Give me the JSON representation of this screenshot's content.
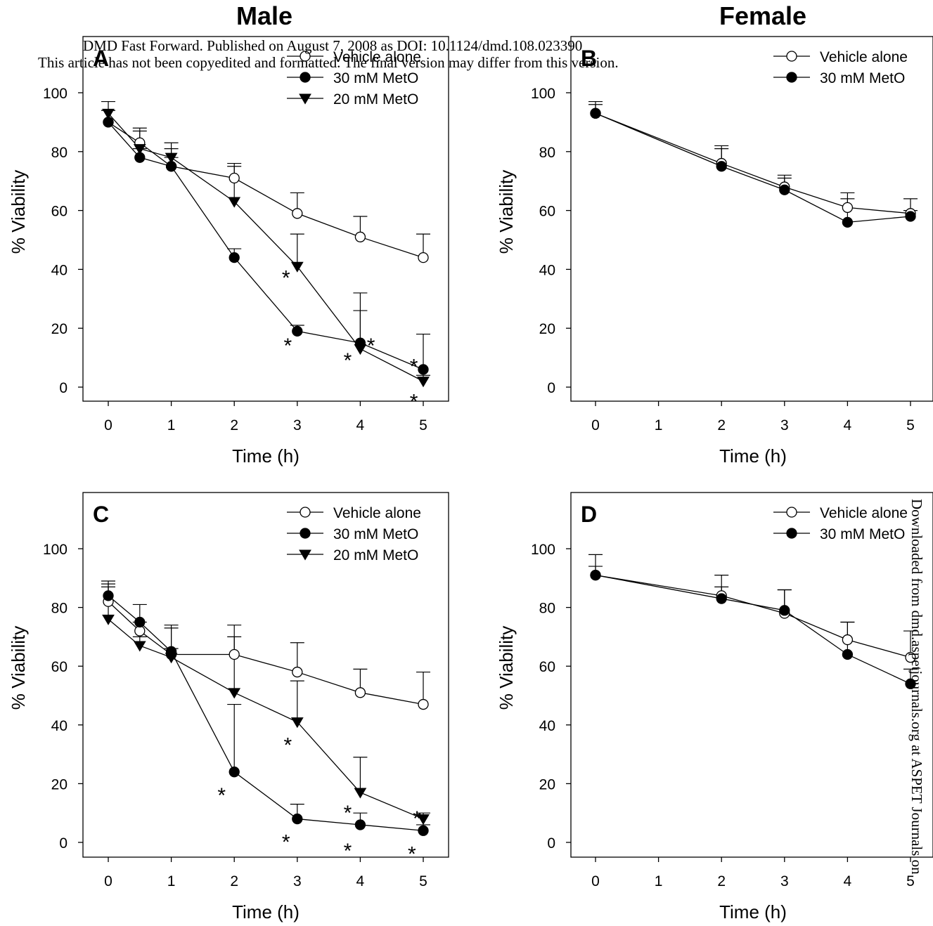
{
  "headings": {
    "male": "Male",
    "female": "Female"
  },
  "watermark": {
    "line1": "DMD Fast Forward. Published on August 7, 2008 as DOI: 10.1124/dmd.108.023390",
    "line2": "This article has not been copyedited and formatted. The final version may differ from this version.",
    "side": "Downloaded from dmd.aspetjournals.org at ASPET Journals on"
  },
  "chart_data": [
    {
      "type": "line",
      "panel_label": "A",
      "xlabel": "Time (h)",
      "ylabel": "% Viability",
      "xlim": [
        -0.4,
        5.4
      ],
      "ylim": [
        -5,
        115
      ],
      "xticks": [
        0,
        1,
        2,
        3,
        4,
        5
      ],
      "yticks": [
        0,
        20,
        40,
        60,
        80,
        100
      ],
      "legend_position": "top-right",
      "series": [
        {
          "name": "Vehicle alone",
          "marker": "open-circle",
          "x": [
            0,
            0.5,
            1,
            2,
            3,
            4,
            5
          ],
          "y": [
            90,
            83,
            75,
            71,
            59,
            51,
            44
          ],
          "err": [
            4,
            4,
            6,
            4,
            7,
            7,
            8
          ]
        },
        {
          "name": "30 mM MetO",
          "marker": "filled-circle",
          "x": [
            0,
            0.5,
            1,
            2,
            3,
            4,
            5
          ],
          "y": [
            90,
            78,
            75,
            44,
            19,
            15,
            6
          ],
          "err": [
            4,
            3,
            3,
            3,
            2,
            11,
            12
          ]
        },
        {
          "name": "20 mM MetO",
          "marker": "filled-triangle",
          "x": [
            0,
            0.5,
            1,
            2,
            3,
            4,
            5
          ],
          "y": [
            93,
            81,
            78,
            63,
            41,
            13,
            2
          ],
          "err": [
            4,
            7,
            5,
            13,
            11,
            19,
            2
          ]
        }
      ],
      "annotations": [
        {
          "text": "*",
          "x": 2.82,
          "y": 39
        },
        {
          "text": "*",
          "x": 2.85,
          "y": 16
        },
        {
          "text": "*",
          "x": 3.8,
          "y": 11
        },
        {
          "text": "*",
          "x": 4.17,
          "y": 16
        },
        {
          "text": "*",
          "x": 4.85,
          "y": 9
        },
        {
          "text": "*",
          "x": 4.85,
          "y": -3
        }
      ]
    },
    {
      "type": "line",
      "panel_label": "B",
      "xlabel": "Time (h)",
      "ylabel": "% Viability",
      "xlim": [
        -0.4,
        5.4
      ],
      "ylim": [
        -5,
        115
      ],
      "xticks": [
        0,
        1,
        2,
        3,
        4,
        5
      ],
      "yticks": [
        0,
        20,
        40,
        60,
        80,
        100
      ],
      "legend_position": "top-right",
      "series": [
        {
          "name": "Vehicle alone",
          "marker": "open-circle",
          "x": [
            0,
            2,
            3,
            4,
            5
          ],
          "y": [
            93,
            76,
            68,
            61,
            59
          ],
          "err": [
            4,
            6,
            4,
            5,
            5
          ]
        },
        {
          "name": "30 mM MetO",
          "marker": "filled-circle",
          "x": [
            0,
            2,
            3,
            4,
            5
          ],
          "y": [
            93,
            75,
            67,
            56,
            58
          ],
          "err": [
            3,
            6,
            4,
            8,
            2
          ]
        }
      ],
      "annotations": []
    },
    {
      "type": "line",
      "panel_label": "C",
      "xlabel": "Time (h)",
      "ylabel": "% Viability",
      "xlim": [
        -0.4,
        5.4
      ],
      "ylim": [
        -5,
        115
      ],
      "xticks": [
        0,
        1,
        2,
        3,
        4,
        5
      ],
      "yticks": [
        0,
        20,
        40,
        60,
        80,
        100
      ],
      "legend_position": "top-right",
      "series": [
        {
          "name": "Vehicle alone",
          "marker": "open-circle",
          "x": [
            0,
            0.5,
            1,
            2,
            3,
            4,
            5
          ],
          "y": [
            82,
            72,
            64,
            64,
            58,
            51,
            47
          ],
          "err": [
            5,
            3,
            10,
            10,
            10,
            8,
            11
          ]
        },
        {
          "name": "30 mM MetO",
          "marker": "filled-circle",
          "x": [
            0,
            0.5,
            1,
            2,
            3,
            4,
            5
          ],
          "y": [
            84,
            75,
            65,
            24,
            8,
            6,
            4
          ],
          "err": [
            5,
            6,
            8,
            23,
            5,
            4,
            2
          ]
        },
        {
          "name": "20 mM MetO",
          "marker": "filled-triangle",
          "x": [
            0,
            0.5,
            1,
            2,
            3,
            4,
            5
          ],
          "y": [
            76,
            67,
            63,
            51,
            41,
            17,
            8
          ],
          "err": [
            12,
            3,
            3,
            19,
            14,
            12,
            2
          ]
        }
      ],
      "annotations": [
        {
          "text": "*",
          "x": 1.8,
          "y": 18
        },
        {
          "text": "*",
          "x": 2.85,
          "y": 35
        },
        {
          "text": "*",
          "x": 2.82,
          "y": 2
        },
        {
          "text": "*",
          "x": 3.8,
          "y": 12
        },
        {
          "text": "*",
          "x": 3.8,
          "y": -1
        },
        {
          "text": "*",
          "x": 4.9,
          "y": 10
        },
        {
          "text": "*",
          "x": 4.82,
          "y": -2
        }
      ]
    },
    {
      "type": "line",
      "panel_label": "D",
      "xlabel": "Time (h)",
      "ylabel": "% Viability",
      "xlim": [
        -0.4,
        5.4
      ],
      "ylim": [
        -5,
        115
      ],
      "xticks": [
        0,
        1,
        2,
        3,
        4,
        5
      ],
      "yticks": [
        0,
        20,
        40,
        60,
        80,
        100
      ],
      "legend_position": "top-right",
      "series": [
        {
          "name": "Vehicle alone",
          "marker": "open-circle",
          "x": [
            0,
            2,
            3,
            4,
            5
          ],
          "y": [
            91,
            84,
            78,
            69,
            63
          ],
          "err": [
            7,
            7,
            8,
            6,
            9
          ]
        },
        {
          "name": "30 mM MetO",
          "marker": "filled-circle",
          "x": [
            0,
            2,
            3,
            4,
            5
          ],
          "y": [
            91,
            83,
            79,
            64,
            54
          ],
          "err": [
            3,
            4,
            7,
            11,
            5
          ]
        }
      ],
      "annotations": []
    }
  ]
}
